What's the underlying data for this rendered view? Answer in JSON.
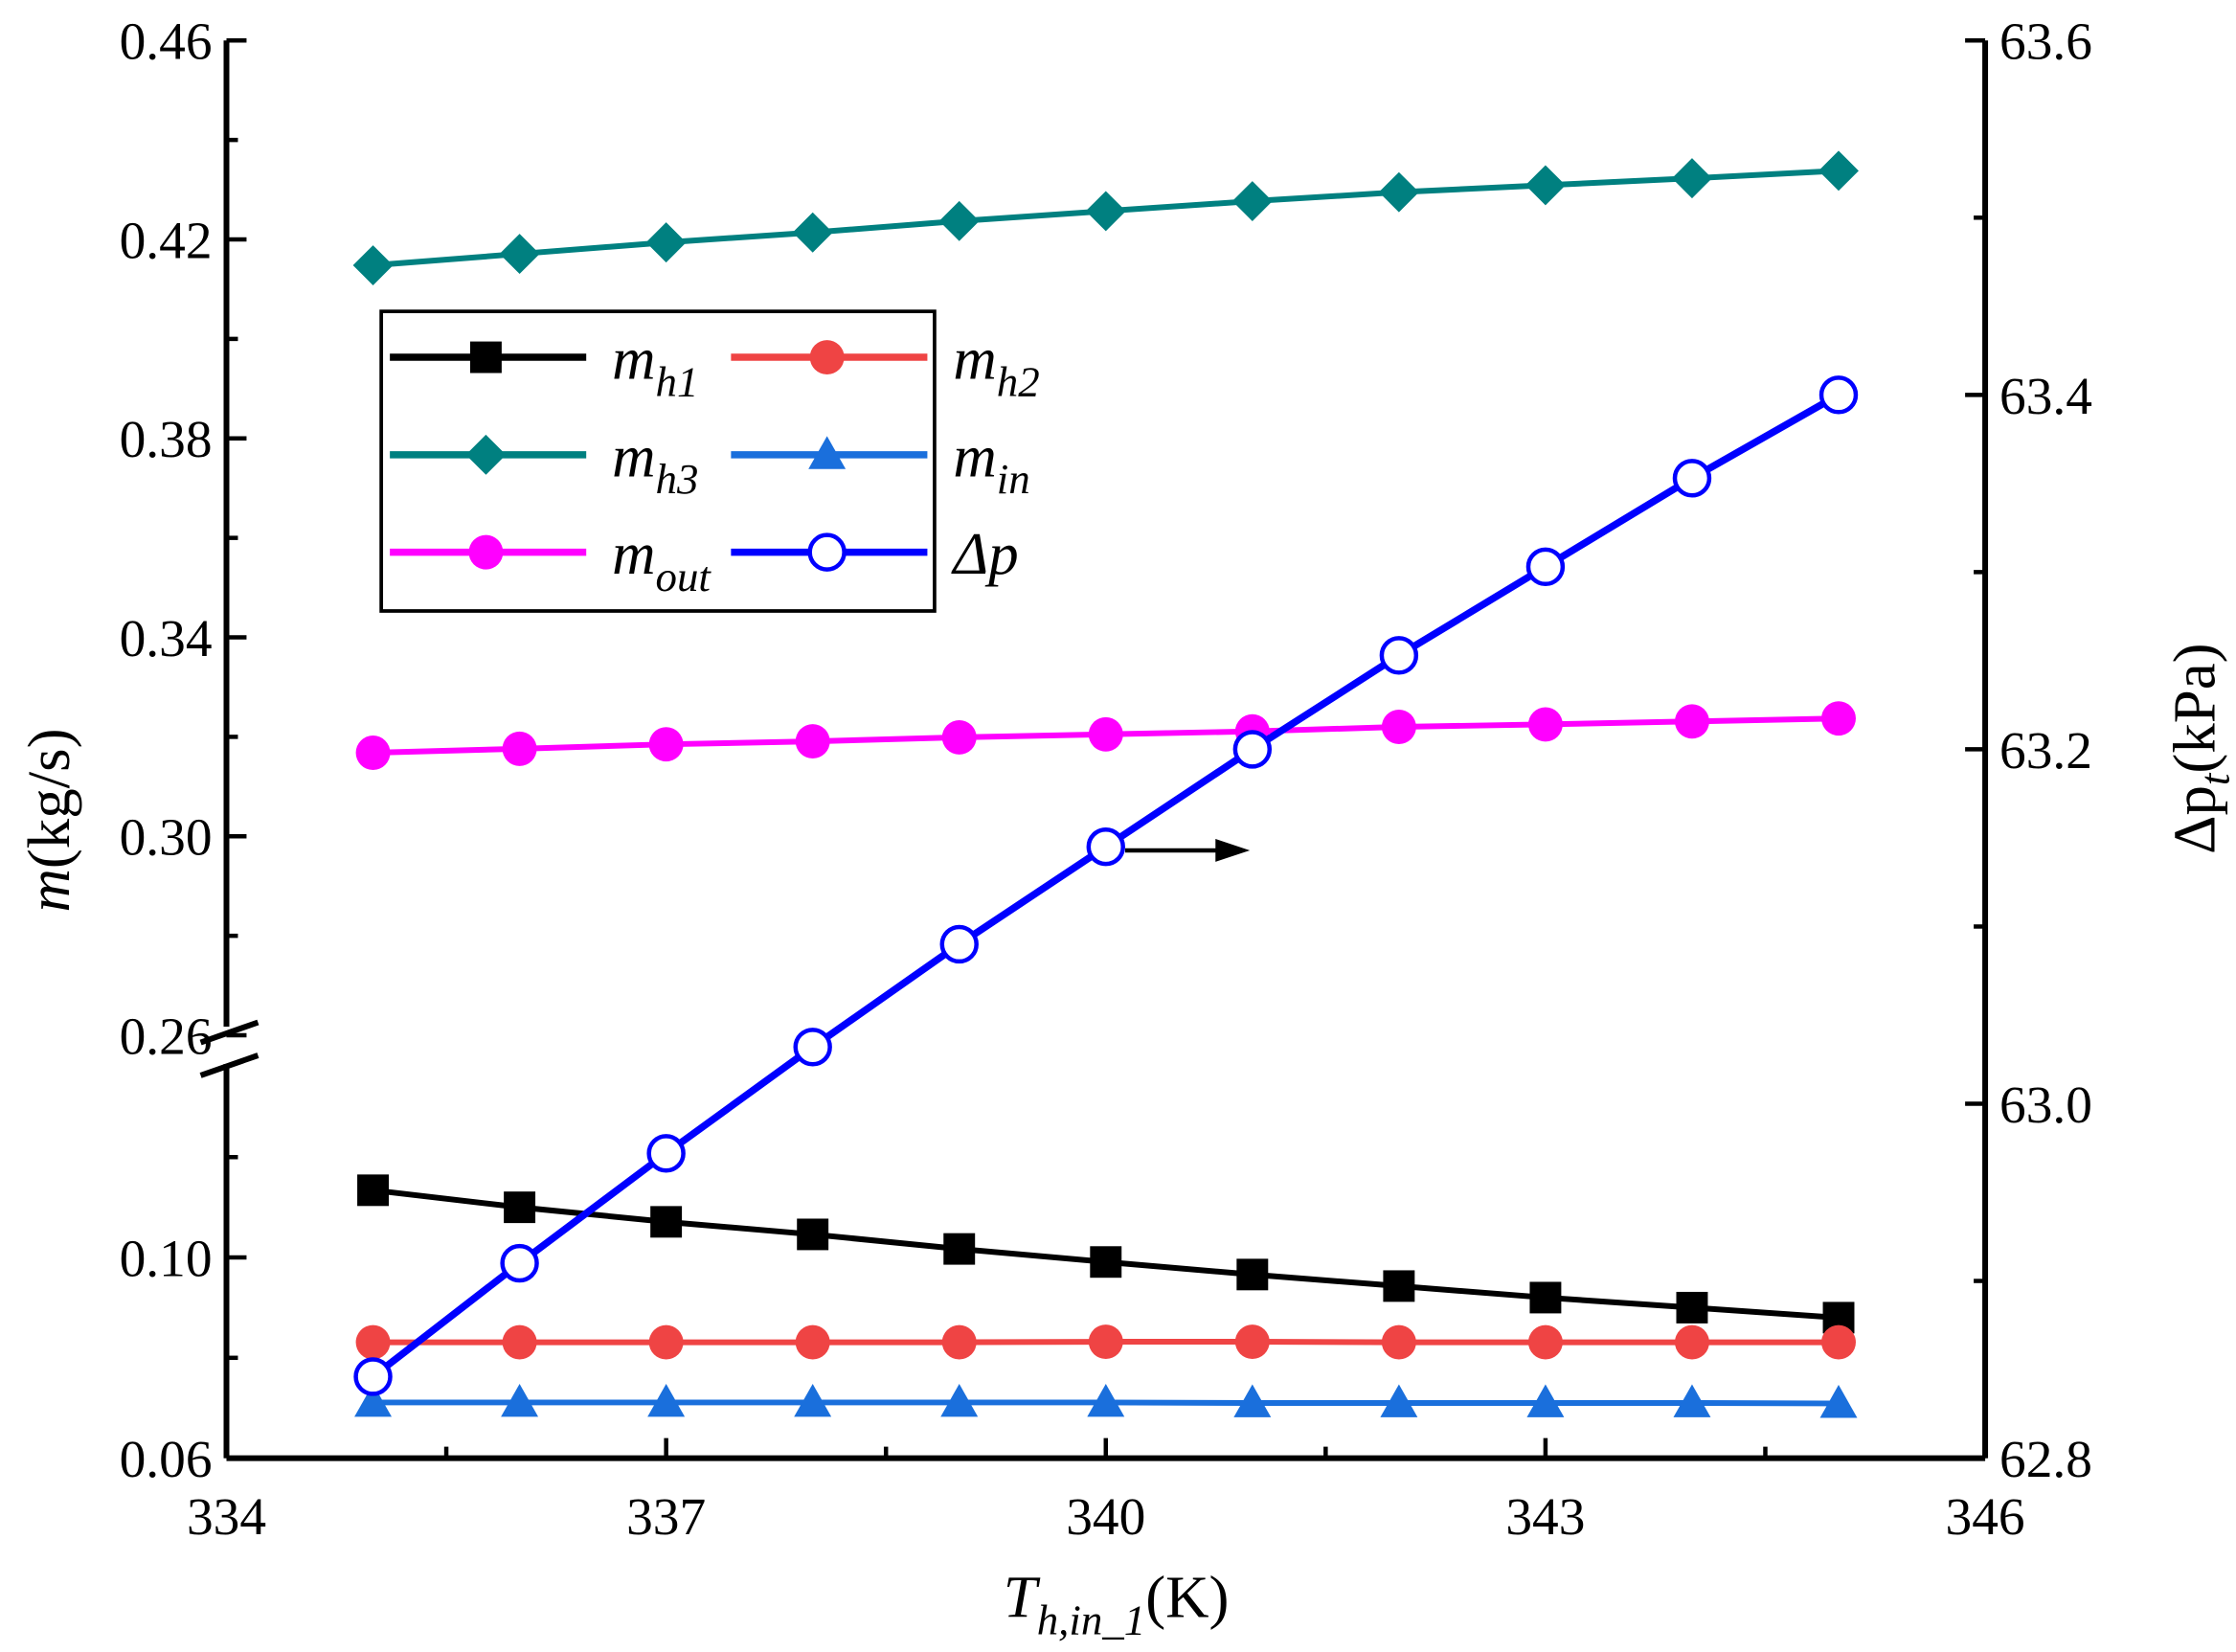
{
  "chart_data": {
    "type": "line",
    "title": "",
    "xlabel": {
      "main": "T",
      "sub": "h,in_1",
      "unit": "(K)"
    },
    "ylabel_left": {
      "main": "m",
      "unit": "(kg/s)"
    },
    "ylabel_right": {
      "main": "Δp",
      "sub": "t",
      "unit": "(kPa)"
    },
    "xlim": [
      334,
      346
    ],
    "xticks": [
      "334",
      "337",
      "340",
      "343",
      "346"
    ],
    "ylim_left_lower": [
      0.06,
      0.26
    ],
    "ylim_left_upper": [
      0.26,
      0.46
    ],
    "yticks_left": [
      "0.06",
      "0.10",
      "0.26",
      "0.30",
      "0.34",
      "0.38",
      "0.42",
      "0.46"
    ],
    "ylim_right": [
      62.8,
      63.6
    ],
    "yticks_right": [
      "62.8",
      "63.0",
      "63.2",
      "63.4",
      "63.6"
    ],
    "axis_break": "left y-axis broken between ~0.13 and 0.26",
    "legend_placement": "upper-left",
    "x": [
      335,
      336,
      337,
      338,
      339,
      340,
      341,
      342,
      343,
      344,
      345
    ],
    "series": [
      {
        "name": "m",
        "sub": "h1",
        "axis": "left",
        "color": "#000000",
        "marker": "square",
        "values": [
          0.1134,
          0.11,
          0.1071,
          0.1046,
          0.1017,
          0.0991,
          0.0966,
          0.0943,
          0.092,
          0.09,
          0.088
        ]
      },
      {
        "name": "m",
        "sub": "h2",
        "axis": "left",
        "color": "#ef4444",
        "marker": "circle",
        "values": [
          0.0831,
          0.0831,
          0.0831,
          0.0831,
          0.0831,
          0.0832,
          0.0832,
          0.0831,
          0.0831,
          0.0831,
          0.0831
        ]
      },
      {
        "name": "m",
        "sub": "h3",
        "axis": "left",
        "color": "#008080",
        "marker": "diamond",
        "values": [
          0.4148,
          0.4171,
          0.4194,
          0.4214,
          0.4237,
          0.4257,
          0.4277,
          0.4295,
          0.4309,
          0.4323,
          0.4338
        ]
      },
      {
        "name": "m",
        "sub": "in",
        "axis": "left",
        "color": "#1a6fdc",
        "marker": "triangle",
        "values": [
          0.0711,
          0.0711,
          0.0711,
          0.0711,
          0.0711,
          0.0711,
          0.071,
          0.071,
          0.071,
          0.071,
          0.0709
        ]
      },
      {
        "name": "m",
        "sub": "out",
        "axis": "left",
        "color": "#ff00ff",
        "marker": "circle",
        "values": [
          0.3168,
          0.3176,
          0.3185,
          0.3191,
          0.3199,
          0.3205,
          0.3211,
          0.322,
          0.3225,
          0.3231,
          0.3237
        ]
      },
      {
        "name": "Δp",
        "sub": "",
        "axis": "right",
        "color": "#0000ff",
        "marker": "open-circle",
        "values": [
          62.846,
          62.91,
          62.972,
          63.032,
          63.09,
          63.145,
          63.2,
          63.253,
          63.303,
          63.353,
          63.4
        ]
      }
    ],
    "annotations": [
      {
        "type": "arrow",
        "direction": "right",
        "meaning": "Δp series uses right axis"
      }
    ]
  }
}
